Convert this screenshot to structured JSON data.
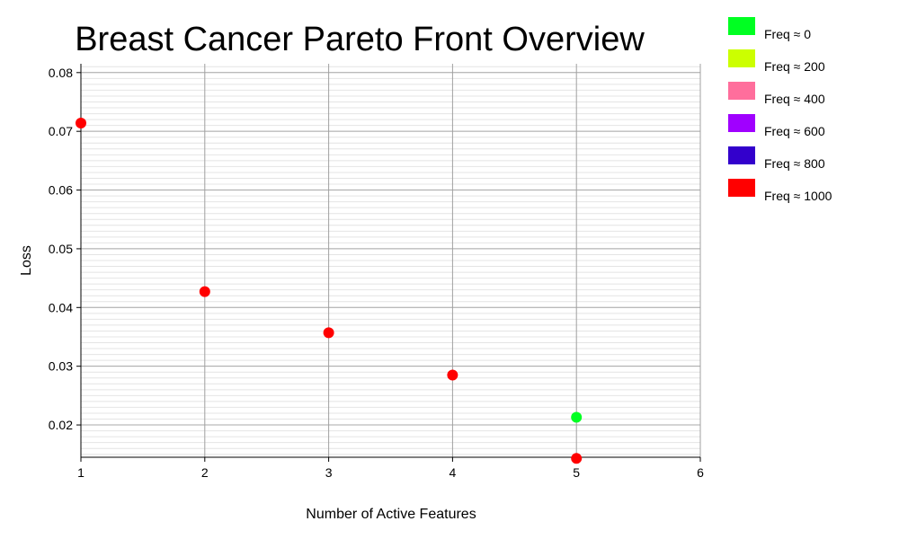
{
  "chart_data": {
    "type": "scatter",
    "title": "Breast Cancer Pareto Front Overview",
    "xlabel": "Number of Active Features",
    "ylabel": "Loss",
    "xlim": [
      1,
      6
    ],
    "ylim": [
      0.0145,
      0.0815
    ],
    "xticks": [
      "1",
      "2",
      "3",
      "4",
      "5",
      "6"
    ],
    "yticks": [
      "0.02",
      "0.03",
      "0.04",
      "0.05",
      "0.06",
      "0.07",
      "0.08"
    ],
    "grid": true,
    "legend_position": "top-right",
    "legend": [
      {
        "label": "Freq ≈ 0",
        "color": "#00ff22"
      },
      {
        "label": "Freq ≈ 200",
        "color": "#ccff00"
      },
      {
        "label": "Freq ≈ 400",
        "color": "#ff6e9c"
      },
      {
        "label": "Freq ≈ 600",
        "color": "#a000ff"
      },
      {
        "label": "Freq ≈ 800",
        "color": "#3300cc"
      },
      {
        "label": "Freq ≈ 1000",
        "color": "#ff0000"
      }
    ],
    "points": [
      {
        "x": 1,
        "y": 0.0714,
        "color": "#ff0000"
      },
      {
        "x": 2,
        "y": 0.0427,
        "color": "#ff0000"
      },
      {
        "x": 3,
        "y": 0.0357,
        "color": "#ff0000"
      },
      {
        "x": 4,
        "y": 0.0285,
        "color": "#ff0000"
      },
      {
        "x": 5,
        "y": 0.0213,
        "color": "#00ff22"
      },
      {
        "x": 5,
        "y": 0.0143,
        "color": "#ff0000"
      }
    ]
  }
}
